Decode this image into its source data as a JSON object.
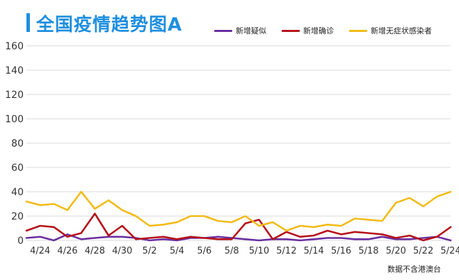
{
  "chart_data": {
    "type": "line",
    "title": "全国疫情趋势图A",
    "xlabel": "",
    "ylabel": "",
    "ylim": [
      0,
      160
    ],
    "yticks": [
      0,
      20,
      40,
      60,
      80,
      100,
      120,
      140,
      160
    ],
    "grid": true,
    "legend_position": "top-right",
    "x": [
      "4/23",
      "4/24",
      "4/25",
      "4/26",
      "4/27",
      "4/28",
      "4/29",
      "4/30",
      "5/1",
      "5/2",
      "5/3",
      "5/4",
      "5/5",
      "5/6",
      "5/7",
      "5/8",
      "5/9",
      "5/10",
      "5/11",
      "5/12",
      "5/13",
      "5/14",
      "5/15",
      "5/16",
      "5/17",
      "5/18",
      "5/19",
      "5/20",
      "5/21",
      "5/22",
      "5/23",
      "5/24"
    ],
    "xtick_labels": [
      "4/24",
      "4/26",
      "4/28",
      "4/30",
      "5/2",
      "5/4",
      "5/6",
      "5/8",
      "5/10",
      "5/12",
      "5/14",
      "5/16",
      "5/18",
      "5/20",
      "5/22",
      "5/24"
    ],
    "series": [
      {
        "name": "新增疑似",
        "color": "#6a2fa0",
        "values": [
          2,
          3,
          0,
          5,
          1,
          2,
          3,
          3,
          2,
          0,
          1,
          0,
          2,
          2,
          3,
          2,
          1,
          0,
          1,
          1,
          0,
          1,
          2,
          2,
          1,
          1,
          3,
          1,
          1,
          2,
          3,
          0
        ]
      },
      {
        "name": "新增确诊",
        "color": "#b5121b",
        "values": [
          8,
          12,
          11,
          3,
          6,
          22,
          4,
          12,
          1,
          2,
          3,
          1,
          3,
          2,
          1,
          1,
          14,
          17,
          1,
          7,
          3,
          4,
          8,
          5,
          7,
          6,
          5,
          2,
          4,
          0,
          3,
          11
        ]
      },
      {
        "name": "新增无症状感染者",
        "color": "#f2bb17",
        "values": [
          32,
          29,
          30,
          25,
          40,
          26,
          33,
          25,
          20,
          12,
          13,
          15,
          20,
          20,
          16,
          15,
          20,
          12,
          15,
          8,
          12,
          11,
          13,
          12,
          18,
          17,
          16,
          31,
          35,
          28,
          36,
          40
        ]
      }
    ]
  },
  "footnote": "数据不含港澳台"
}
